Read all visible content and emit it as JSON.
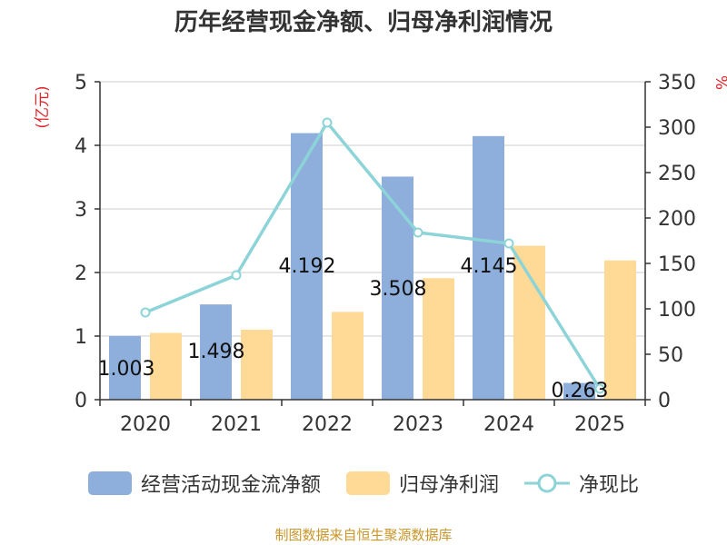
{
  "colors": {
    "cash_flow_bar": "#8eaedb",
    "net_profit_bar": "#ffd996",
    "ratio_line": "#8dd4d8",
    "axis": "#333333",
    "grid": "#cccccc",
    "left_unit": "#e0252b",
    "right_unit": "#e0252b",
    "source": "#c8962a"
  },
  "legend": {
    "cash_flow": "经营活动现金流净额",
    "net_profit": "归母净利润",
    "ratio": "净现比"
  },
  "source_text": "制图数据来自恒生聚源数据库",
  "chart_data": {
    "type": "bar",
    "title": "历年经营现金净额、归母净利润情况",
    "categories": [
      "2020",
      "2021",
      "2022",
      "2023",
      "2024",
      "2025"
    ],
    "series": [
      {
        "name": "经营活动现金流净额",
        "axis": "left",
        "kind": "bar",
        "values": [
          1.003,
          1.498,
          4.192,
          3.508,
          4.145,
          0.263
        ],
        "labels": [
          "1.003",
          "1.498",
          "4.192",
          "3.508",
          "4.145",
          "0.263"
        ]
      },
      {
        "name": "归母净利润",
        "axis": "left",
        "kind": "bar",
        "values": [
          1.05,
          1.1,
          1.38,
          1.91,
          2.42,
          2.19
        ]
      },
      {
        "name": "净现比",
        "axis": "right",
        "kind": "line",
        "values": [
          96,
          137,
          305,
          184,
          172,
          12
        ]
      }
    ],
    "ylabel_left": "(亿元)",
    "ylabel_right": "%",
    "ylim_left": [
      0,
      5
    ],
    "ylim_right": [
      0,
      350
    ],
    "yticks_left": [
      "0",
      "1",
      "2",
      "3",
      "4",
      "5"
    ],
    "yticks_right": [
      "0",
      "50",
      "100",
      "150",
      "200",
      "250",
      "300",
      "350"
    ],
    "grid": true
  }
}
